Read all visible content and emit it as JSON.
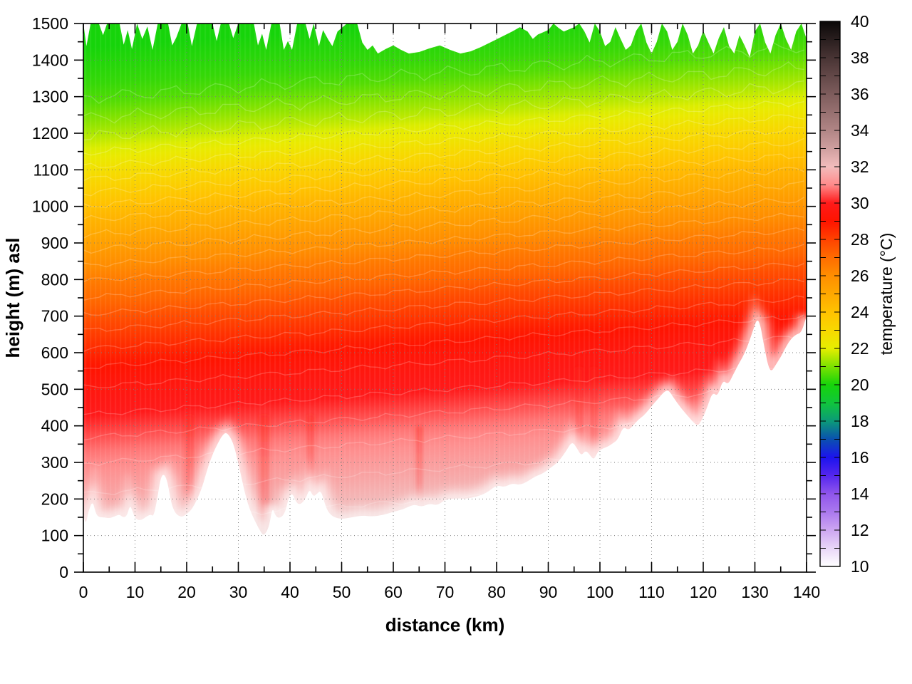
{
  "chart_data": {
    "type": "heatmap",
    "style": "filled-contour-cross-section",
    "title": "",
    "xlabel": "distance (km)",
    "ylabel": "height (m) asl",
    "colorbar_label": "temperature (°C)",
    "x_range": [
      0,
      140
    ],
    "y_range": [
      0,
      1500
    ],
    "cb_range": [
      10,
      40
    ],
    "x_ticks": [
      0,
      10,
      20,
      30,
      40,
      50,
      60,
      70,
      80,
      90,
      100,
      110,
      120,
      130,
      140
    ],
    "x_minor_step": 5,
    "y_ticks": [
      0,
      100,
      200,
      300,
      400,
      500,
      600,
      700,
      800,
      900,
      1000,
      1100,
      1200,
      1300,
      1400,
      1500
    ],
    "y_minor_step": 50,
    "cb_ticks": [
      10,
      12,
      14,
      16,
      18,
      20,
      22,
      24,
      26,
      28,
      30,
      32,
      34,
      36,
      38,
      40
    ],
    "cb_minor_step": 1,
    "grid": true,
    "legend_position": "right-colorbar",
    "palette": [
      [
        10,
        "#ffffff"
      ],
      [
        11,
        "#e8d6f8"
      ],
      [
        12,
        "#cda6f1"
      ],
      [
        13,
        "#aa78ee"
      ],
      [
        14,
        "#8f55ec"
      ],
      [
        15,
        "#5526ee"
      ],
      [
        16,
        "#1c13ee"
      ],
      [
        17,
        "#0a50b0"
      ],
      [
        18,
        "#0b9a78"
      ],
      [
        19,
        "#10c53c"
      ],
      [
        20,
        "#16d40a"
      ],
      [
        21,
        "#7ce200"
      ],
      [
        22,
        "#e6ee00"
      ],
      [
        23,
        "#f8d800"
      ],
      [
        24,
        "#ffc200"
      ],
      [
        25,
        "#ffa800"
      ],
      [
        26,
        "#ff8e00"
      ],
      [
        27,
        "#ff6c00"
      ],
      [
        28,
        "#ff4200"
      ],
      [
        29,
        "#ff1400"
      ],
      [
        30,
        "#ff1a1a"
      ],
      [
        31,
        "#ff8a8a"
      ],
      [
        32,
        "#f2bcbc"
      ],
      [
        33,
        "#cf9f9f"
      ],
      [
        34,
        "#b08585"
      ],
      [
        35,
        "#977070"
      ],
      [
        36,
        "#7d5c5c"
      ],
      [
        37,
        "#634848"
      ],
      [
        38,
        "#483434"
      ],
      [
        39,
        "#291e1e"
      ],
      [
        40,
        "#0a0808"
      ]
    ],
    "temp_profile_height_degC": [
      [
        0,
        33.2
      ],
      [
        100,
        32.8
      ],
      [
        150,
        32.4
      ],
      [
        200,
        32.0
      ],
      [
        300,
        31.4
      ],
      [
        400,
        30.8
      ],
      [
        450,
        30.4
      ],
      [
        500,
        30.0
      ],
      [
        550,
        29.7
      ],
      [
        600,
        29.3
      ],
      [
        650,
        28.8
      ],
      [
        700,
        28.3
      ],
      [
        750,
        27.8
      ],
      [
        800,
        27.2
      ],
      [
        850,
        26.7
      ],
      [
        900,
        26.1
      ],
      [
        950,
        25.5
      ],
      [
        1000,
        24.9
      ],
      [
        1050,
        24.3
      ],
      [
        1100,
        23.6
      ],
      [
        1150,
        22.9
      ],
      [
        1200,
        22.2
      ],
      [
        1250,
        21.6
      ],
      [
        1300,
        21.1
      ],
      [
        1350,
        20.6
      ],
      [
        1400,
        20.3
      ],
      [
        1500,
        20.0
      ]
    ],
    "isotherm_rise_west_to_east_m": 140,
    "terrain_km_m": [
      [
        0,
        155
      ],
      [
        0.5,
        130
      ],
      [
        1,
        168
      ],
      [
        1.8,
        196
      ],
      [
        2.4,
        160
      ],
      [
        3,
        150
      ],
      [
        4,
        150
      ],
      [
        5,
        147
      ],
      [
        6,
        152
      ],
      [
        7,
        158
      ],
      [
        7.6,
        150
      ],
      [
        8.4,
        152
      ],
      [
        9,
        183
      ],
      [
        9.5,
        168
      ],
      [
        10,
        147
      ],
      [
        11,
        140
      ],
      [
        12,
        150
      ],
      [
        13,
        158
      ],
      [
        13.6,
        152
      ],
      [
        14.3,
        200
      ],
      [
        15,
        262
      ],
      [
        15.7,
        268
      ],
      [
        16.3,
        246
      ],
      [
        17,
        190
      ],
      [
        17.5,
        170
      ],
      [
        18,
        158
      ],
      [
        19,
        150
      ],
      [
        20,
        158
      ],
      [
        21,
        172
      ],
      [
        22,
        198
      ],
      [
        23,
        232
      ],
      [
        24,
        282
      ],
      [
        25,
        322
      ],
      [
        26,
        352
      ],
      [
        27,
        376
      ],
      [
        27.7,
        382
      ],
      [
        28.5,
        368
      ],
      [
        29.2,
        344
      ],
      [
        30,
        298
      ],
      [
        30.8,
        246
      ],
      [
        31.5,
        204
      ],
      [
        32.2,
        172
      ],
      [
        33,
        146
      ],
      [
        34,
        118
      ],
      [
        34.8,
        100
      ],
      [
        35.4,
        108
      ],
      [
        36,
        128
      ],
      [
        36.6,
        178
      ],
      [
        37.2,
        153
      ],
      [
        38,
        147
      ],
      [
        39,
        160
      ],
      [
        39.8,
        206
      ],
      [
        40.5,
        216
      ],
      [
        41.2,
        190
      ],
      [
        42,
        184
      ],
      [
        43,
        200
      ],
      [
        43.8,
        228
      ],
      [
        44.5,
        206
      ],
      [
        45.2,
        214
      ],
      [
        46,
        224
      ],
      [
        46.8,
        184
      ],
      [
        47.5,
        162
      ],
      [
        48.5,
        150
      ],
      [
        50,
        145
      ],
      [
        52,
        150
      ],
      [
        54,
        155
      ],
      [
        56,
        152
      ],
      [
        58,
        156
      ],
      [
        60,
        165
      ],
      [
        62,
        172
      ],
      [
        64,
        186
      ],
      [
        65.5,
        178
      ],
      [
        67,
        188
      ],
      [
        68.5,
        182
      ],
      [
        70,
        198
      ],
      [
        72,
        202
      ],
      [
        74,
        200
      ],
      [
        76,
        206
      ],
      [
        78,
        216
      ],
      [
        80,
        238
      ],
      [
        81.5,
        232
      ],
      [
        83,
        243
      ],
      [
        84.5,
        238
      ],
      [
        86,
        248
      ],
      [
        87.5,
        262
      ],
      [
        89,
        270
      ],
      [
        90.5,
        286
      ],
      [
        92,
        302
      ],
      [
        93.5,
        332
      ],
      [
        94.6,
        358
      ],
      [
        95.6,
        338
      ],
      [
        96.4,
        318
      ],
      [
        97.2,
        333
      ],
      [
        98,
        322
      ],
      [
        98.8,
        306
      ],
      [
        99.6,
        330
      ],
      [
        100.5,
        338
      ],
      [
        101.5,
        343
      ],
      [
        102.5,
        352
      ],
      [
        103.5,
        363
      ],
      [
        104.5,
        398
      ],
      [
        105.5,
        388
      ],
      [
        106.5,
        402
      ],
      [
        107.5,
        418
      ],
      [
        108.5,
        428
      ],
      [
        109.5,
        445
      ],
      [
        110.5,
        462
      ],
      [
        111.5,
        478
      ],
      [
        112.5,
        494
      ],
      [
        113.3,
        498
      ],
      [
        114.2,
        478
      ],
      [
        115.2,
        458
      ],
      [
        116.2,
        440
      ],
      [
        117.2,
        424
      ],
      [
        118.2,
        408
      ],
      [
        119,
        400
      ],
      [
        119.8,
        418
      ],
      [
        120.8,
        452
      ],
      [
        121.8,
        492
      ],
      [
        122.8,
        480
      ],
      [
        123.8,
        526
      ],
      [
        124.8,
        512
      ],
      [
        125.8,
        540
      ],
      [
        126.8,
        568
      ],
      [
        127.8,
        592
      ],
      [
        128.8,
        626
      ],
      [
        129.8,
        668
      ],
      [
        130.4,
        692
      ],
      [
        131,
        680
      ],
      [
        131.8,
        616
      ],
      [
        132.6,
        562
      ],
      [
        133.2,
        548
      ],
      [
        134,
        566
      ],
      [
        135,
        588
      ],
      [
        136,
        616
      ],
      [
        137,
        638
      ],
      [
        138,
        650
      ],
      [
        139,
        655
      ],
      [
        140,
        700
      ]
    ],
    "data_top_boundary_km_m": [
      [
        0,
        1500
      ],
      [
        0.6,
        1438
      ],
      [
        1.4,
        1500
      ],
      [
        3,
        1500
      ],
      [
        3.8,
        1468
      ],
      [
        4.6,
        1500
      ],
      [
        7,
        1500
      ],
      [
        7.8,
        1442
      ],
      [
        8.6,
        1482
      ],
      [
        9.4,
        1430
      ],
      [
        10.4,
        1500
      ],
      [
        11.4,
        1458
      ],
      [
        12.4,
        1492
      ],
      [
        13.4,
        1428
      ],
      [
        14.4,
        1500
      ],
      [
        16.4,
        1500
      ],
      [
        17.2,
        1440
      ],
      [
        18,
        1462
      ],
      [
        19,
        1500
      ],
      [
        20.2,
        1500
      ],
      [
        21,
        1438
      ],
      [
        22,
        1500
      ],
      [
        25,
        1500
      ],
      [
        25.8,
        1452
      ],
      [
        26.6,
        1500
      ],
      [
        28.2,
        1500
      ],
      [
        29,
        1460
      ],
      [
        30,
        1500
      ],
      [
        33,
        1500
      ],
      [
        33.8,
        1440
      ],
      [
        34.6,
        1472
      ],
      [
        35.4,
        1428
      ],
      [
        36.4,
        1500
      ],
      [
        38,
        1500
      ],
      [
        38.8,
        1428
      ],
      [
        39.6,
        1452
      ],
      [
        40.4,
        1428
      ],
      [
        41.4,
        1500
      ],
      [
        43,
        1500
      ],
      [
        43.8,
        1458
      ],
      [
        44.6,
        1500
      ],
      [
        45.6,
        1438
      ],
      [
        46.4,
        1482
      ],
      [
        47.4,
        1456
      ],
      [
        48.2,
        1438
      ],
      [
        49.2,
        1478
      ],
      [
        51,
        1500
      ],
      [
        53,
        1500
      ],
      [
        54,
        1448
      ],
      [
        55,
        1428
      ],
      [
        56,
        1440
      ],
      [
        57,
        1418
      ],
      [
        58.5,
        1430
      ],
      [
        60,
        1440
      ],
      [
        61.5,
        1428
      ],
      [
        63,
        1418
      ],
      [
        65,
        1422
      ],
      [
        67,
        1432
      ],
      [
        69,
        1440
      ],
      [
        71,
        1428
      ],
      [
        73,
        1418
      ],
      [
        75,
        1424
      ],
      [
        77,
        1436
      ],
      [
        79,
        1450
      ],
      [
        81,
        1464
      ],
      [
        83,
        1478
      ],
      [
        84.5,
        1490
      ],
      [
        86,
        1478
      ],
      [
        87,
        1458
      ],
      [
        88,
        1470
      ],
      [
        90,
        1482
      ],
      [
        91,
        1500
      ],
      [
        92,
        1488
      ],
      [
        93,
        1478
      ],
      [
        95,
        1490
      ],
      [
        96,
        1500
      ],
      [
        97,
        1478
      ],
      [
        98,
        1448
      ],
      [
        99,
        1500
      ],
      [
        100,
        1478
      ],
      [
        101,
        1438
      ],
      [
        102,
        1450
      ],
      [
        103,
        1490
      ],
      [
        104,
        1458
      ],
      [
        105,
        1428
      ],
      [
        106,
        1440
      ],
      [
        107,
        1480
      ],
      [
        108,
        1500
      ],
      [
        109,
        1448
      ],
      [
        110,
        1418
      ],
      [
        111,
        1450
      ],
      [
        112,
        1500
      ],
      [
        113,
        1478
      ],
      [
        114,
        1428
      ],
      [
        115,
        1450
      ],
      [
        116,
        1500
      ],
      [
        117,
        1468
      ],
      [
        118,
        1418
      ],
      [
        119,
        1440
      ],
      [
        120,
        1480
      ],
      [
        121,
        1448
      ],
      [
        122,
        1418
      ],
      [
        123,
        1460
      ],
      [
        124,
        1490
      ],
      [
        125,
        1438
      ],
      [
        126,
        1418
      ],
      [
        127,
        1468
      ],
      [
        128,
        1440
      ],
      [
        129,
        1408
      ],
      [
        130,
        1478
      ],
      [
        131,
        1500
      ],
      [
        132,
        1448
      ],
      [
        133,
        1418
      ],
      [
        134,
        1468
      ],
      [
        135,
        1500
      ],
      [
        136,
        1458
      ],
      [
        137,
        1428
      ],
      [
        138,
        1478
      ],
      [
        139,
        1500
      ],
      [
        140,
        1458
      ]
    ],
    "warm_plumes_km": [
      {
        "km": 20.5,
        "half_width_km": 0.9,
        "top_m": 430,
        "bottom_m": 160
      },
      {
        "km": 35.0,
        "half_width_km": 1.0,
        "top_m": 430,
        "bottom_m": 105
      },
      {
        "km": 44.0,
        "half_width_km": 0.7,
        "top_m": 430,
        "bottom_m": 235
      },
      {
        "km": 65.0,
        "half_width_km": 0.6,
        "top_m": 400,
        "bottom_m": 190
      },
      {
        "km": 96.0,
        "half_width_km": 0.8,
        "top_m": 560,
        "bottom_m": 322
      },
      {
        "km": 98.8,
        "half_width_km": 0.7,
        "top_m": 560,
        "bottom_m": 312
      }
    ],
    "field_summary": "Near-surface air ~31-33 degC over low terrain, cooling with height to ~20 degC at 1400-1500 m; isotherms rise ~140 m from x=0 to x=140 km; terrain rises from ~150 m (0-60 km) to ~700 m at 140 km."
  }
}
